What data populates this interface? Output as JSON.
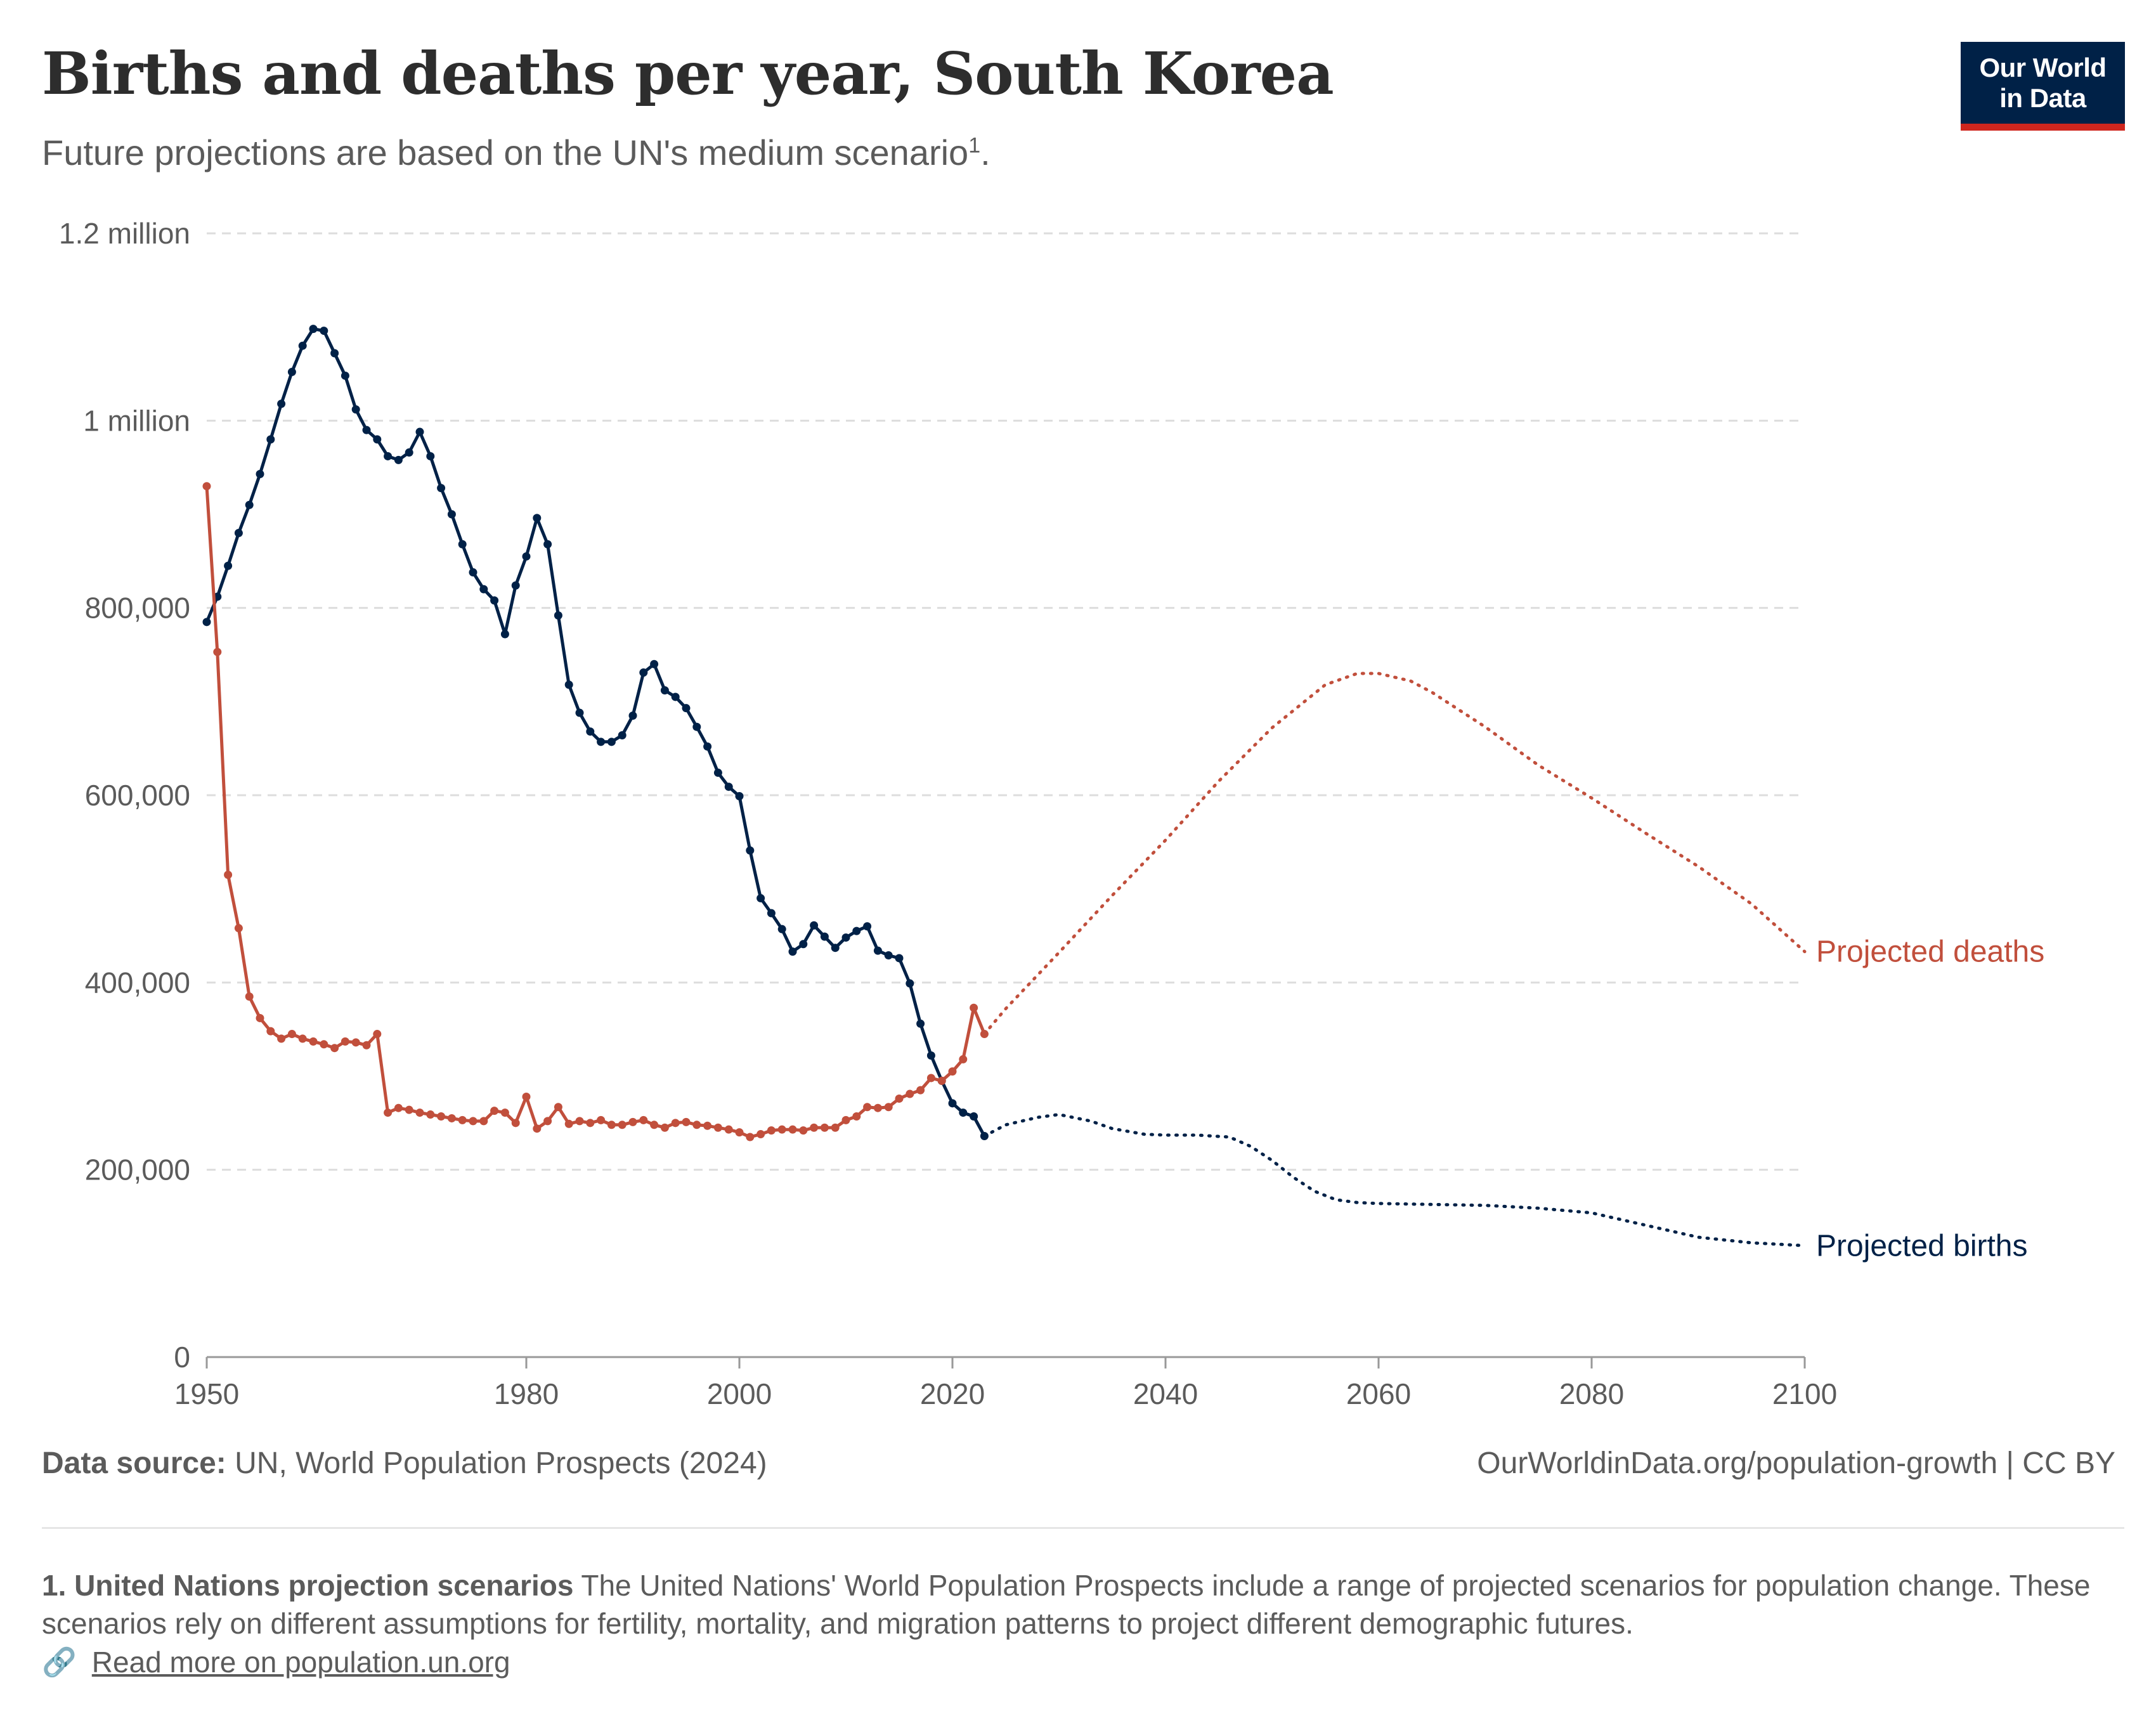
{
  "header": {
    "title": "Births and deaths per year, South Korea",
    "subtitle": "Future projections are based on the UN's medium scenario",
    "subtitle_footnote_mark": "1",
    "subtitle_end": "."
  },
  "logo": {
    "line1": "Our World",
    "line2": "in Data",
    "bg_color": "#002147",
    "accent_color": "#ce261e"
  },
  "footer": {
    "source_label": "Data source:",
    "source_text": "UN, World Population Prospects (2024)",
    "url_text": "OurWorldinData.org/population-growth | CC BY",
    "note_label": "1. United Nations projection scenarios",
    "note_text": "The United Nations' World Population Prospects include a range of projected scenarios for population change. These scenarios rely on different assumptions for fertility, mortality, and migration patterns to project different demographic futures.",
    "read_more_icon": "link-icon",
    "read_more_text": "Read more on population.un.org"
  },
  "chart_data": {
    "type": "line",
    "title": "Births and deaths per year, South Korea",
    "xlim": [
      1950,
      2100
    ],
    "ylim": [
      0,
      1200000
    ],
    "grid": "horizontal dashed",
    "x_ticks": [
      {
        "value": 1950,
        "label": "1950"
      },
      {
        "value": 1980,
        "label": "1980"
      },
      {
        "value": 2000,
        "label": "2000"
      },
      {
        "value": 2020,
        "label": "2020"
      },
      {
        "value": 2040,
        "label": "2040"
      },
      {
        "value": 2060,
        "label": "2060"
      },
      {
        "value": 2080,
        "label": "2080"
      },
      {
        "value": 2100,
        "label": "2100"
      }
    ],
    "y_ticks": [
      {
        "value": 0,
        "label": "0"
      },
      {
        "value": 200000,
        "label": "200,000"
      },
      {
        "value": 400000,
        "label": "400,000"
      },
      {
        "value": 600000,
        "label": "600,000"
      },
      {
        "value": 800000,
        "label": "800,000"
      },
      {
        "value": 1000000,
        "label": "1 million"
      },
      {
        "value": 1200000,
        "label": "1.2 million"
      }
    ],
    "series": [
      {
        "name": "Births",
        "color": "#002147",
        "style": "solid-markers",
        "x": [
          1950,
          1951,
          1952,
          1953,
          1954,
          1955,
          1956,
          1957,
          1958,
          1959,
          1960,
          1961,
          1962,
          1963,
          1964,
          1965,
          1966,
          1967,
          1968,
          1969,
          1970,
          1971,
          1972,
          1973,
          1974,
          1975,
          1976,
          1977,
          1978,
          1979,
          1980,
          1981,
          1982,
          1983,
          1984,
          1985,
          1986,
          1987,
          1988,
          1989,
          1990,
          1991,
          1992,
          1993,
          1994,
          1995,
          1996,
          1997,
          1998,
          1999,
          2000,
          2001,
          2002,
          2003,
          2004,
          2005,
          2006,
          2007,
          2008,
          2009,
          2010,
          2011,
          2012,
          2013,
          2014,
          2015,
          2016,
          2017,
          2018,
          2019,
          2020,
          2021,
          2022,
          2023
        ],
        "values": [
          785000,
          812000,
          845000,
          880000,
          910000,
          943000,
          980000,
          1018000,
          1052000,
          1080000,
          1098000,
          1096000,
          1072000,
          1048000,
          1012000,
          990000,
          980000,
          962000,
          958000,
          966000,
          988000,
          962000,
          928000,
          900000,
          868000,
          838000,
          820000,
          808000,
          772000,
          824000,
          855000,
          896000,
          868000,
          792000,
          718000,
          688000,
          668000,
          657000,
          657000,
          664000,
          685000,
          731000,
          740000,
          712000,
          705000,
          693000,
          673000,
          652000,
          624000,
          609000,
          599000,
          541000,
          490000,
          474000,
          457000,
          433000,
          441000,
          461000,
          449000,
          437000,
          448000,
          455000,
          460000,
          434000,
          429000,
          426000,
          399000,
          356000,
          322000,
          295000,
          271000,
          261000,
          257000,
          236000
        ]
      },
      {
        "name": "Deaths",
        "color": "#c14f3c",
        "style": "solid-markers",
        "x": [
          1950,
          1951,
          1952,
          1953,
          1954,
          1955,
          1956,
          1957,
          1958,
          1959,
          1960,
          1961,
          1962,
          1963,
          1964,
          1965,
          1966,
          1967,
          1968,
          1969,
          1970,
          1971,
          1972,
          1973,
          1974,
          1975,
          1976,
          1977,
          1978,
          1979,
          1980,
          1981,
          1982,
          1983,
          1984,
          1985,
          1986,
          1987,
          1988,
          1989,
          1990,
          1991,
          1992,
          1993,
          1994,
          1995,
          1996,
          1997,
          1998,
          1999,
          2000,
          2001,
          2002,
          2003,
          2004,
          2005,
          2006,
          2007,
          2008,
          2009,
          2010,
          2011,
          2012,
          2013,
          2014,
          2015,
          2016,
          2017,
          2018,
          2019,
          2020,
          2021,
          2022,
          2023
        ],
        "values": [
          930000,
          753000,
          515000,
          458000,
          385000,
          362000,
          348000,
          340000,
          345000,
          340000,
          337000,
          334000,
          330000,
          337000,
          336000,
          333000,
          345000,
          261000,
          266000,
          264000,
          261000,
          259000,
          257000,
          255000,
          253000,
          252000,
          252000,
          263000,
          261000,
          250000,
          278000,
          244000,
          252000,
          267000,
          249000,
          252000,
          250000,
          253000,
          248000,
          248000,
          251000,
          253000,
          248000,
          245000,
          250000,
          251000,
          248000,
          247000,
          245000,
          243000,
          240000,
          235000,
          238000,
          242000,
          243000,
          243000,
          242000,
          245000,
          245000,
          245000,
          253000,
          257000,
          267000,
          266000,
          267000,
          276000,
          281000,
          285000,
          298000,
          295000,
          305000,
          318000,
          373000,
          345000
        ]
      },
      {
        "name": "Projected births",
        "color": "#002147",
        "style": "dotted",
        "x": [
          2023,
          2025,
          2028,
          2030,
          2033,
          2035,
          2038,
          2040,
          2043,
          2046,
          2048,
          2050,
          2052,
          2054,
          2056,
          2058,
          2060,
          2065,
          2070,
          2075,
          2080,
          2085,
          2090,
          2095,
          2100
        ],
        "values": [
          236000,
          248000,
          256000,
          259000,
          252000,
          244000,
          238000,
          237000,
          237000,
          235000,
          225000,
          210000,
          192000,
          177000,
          168000,
          165000,
          164000,
          163000,
          162000,
          159000,
          154000,
          141000,
          128000,
          122000,
          119000
        ]
      },
      {
        "name": "Projected deaths",
        "color": "#c14f3c",
        "style": "dotted",
        "x": [
          2023,
          2025,
          2030,
          2035,
          2040,
          2045,
          2050,
          2055,
          2058,
          2060,
          2063,
          2065,
          2070,
          2075,
          2080,
          2085,
          2090,
          2095,
          2100
        ],
        "values": [
          345000,
          372000,
          432000,
          493000,
          552000,
          615000,
          672000,
          718000,
          730000,
          730000,
          722000,
          710000,
          673000,
          632000,
          597000,
          560000,
          524000,
          484000,
          433000
        ]
      }
    ],
    "end_labels": [
      {
        "series": "Projected deaths",
        "text": "Projected deaths",
        "color": "#c14f3c"
      },
      {
        "series": "Projected births",
        "text": "Projected births",
        "color": "#002147"
      }
    ]
  }
}
